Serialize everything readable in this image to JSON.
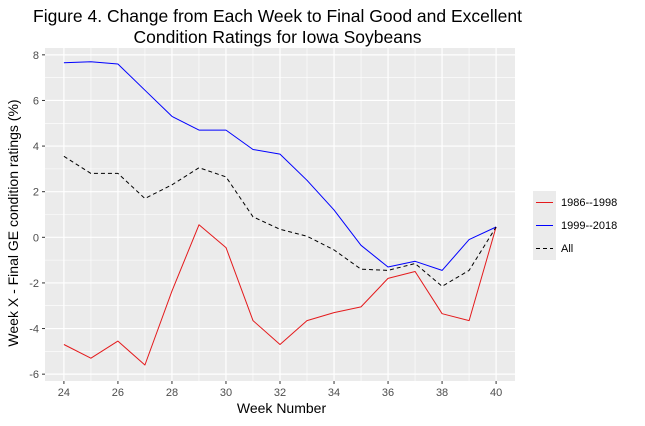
{
  "chart_data": {
    "type": "line",
    "title_lines": [
      "Figure 4. Change from Each Week to Final Good and Excellent",
      "Condition Ratings for Iowa Soybeans"
    ],
    "xlabel": "Week Number",
    "ylabel": "Week X - Final GE condition ratings (%)",
    "x": [
      24,
      25,
      26,
      27,
      28,
      29,
      30,
      31,
      32,
      33,
      34,
      35,
      36,
      37,
      38,
      39,
      40
    ],
    "xlim": [
      23.3,
      40.7
    ],
    "ylim": [
      -6.3,
      8.3
    ],
    "xticks": [
      24,
      26,
      28,
      30,
      32,
      34,
      36,
      38,
      40
    ],
    "xtick_labels": [
      "24",
      "26",
      "28",
      "30",
      "32",
      "34",
      "36",
      "38",
      "40"
    ],
    "yticks": [
      -6,
      -4,
      -2,
      0,
      2,
      4,
      6,
      8
    ],
    "ytick_labels": [
      "-6",
      "-4",
      "-2",
      "0",
      "2",
      "4",
      "6",
      "8"
    ],
    "grid": true,
    "legend_position": "right",
    "series": [
      {
        "name": "1986--1998",
        "color": "#e41a1c",
        "dash": "solid",
        "values": [
          -4.7,
          -5.3,
          -4.55,
          -5.6,
          -2.35,
          0.55,
          -0.45,
          -3.65,
          -4.7,
          -3.65,
          -3.3,
          -3.05,
          -1.8,
          -1.5,
          -3.35,
          -3.65,
          0.45
        ]
      },
      {
        "name": "1999--2018",
        "color": "#0000ff",
        "dash": "solid",
        "values": [
          7.65,
          7.7,
          7.6,
          6.45,
          5.3,
          4.7,
          4.7,
          3.85,
          3.65,
          2.5,
          1.2,
          -0.35,
          -1.3,
          -1.05,
          -1.45,
          -0.1,
          0.45
        ]
      },
      {
        "name": "All",
        "color": "#000000",
        "dash": "dashed",
        "values": [
          3.55,
          2.8,
          2.8,
          1.7,
          2.3,
          3.05,
          2.65,
          0.9,
          0.35,
          0.05,
          -0.55,
          -1.4,
          -1.45,
          -1.15,
          -2.15,
          -1.45,
          0.45
        ]
      }
    ]
  }
}
